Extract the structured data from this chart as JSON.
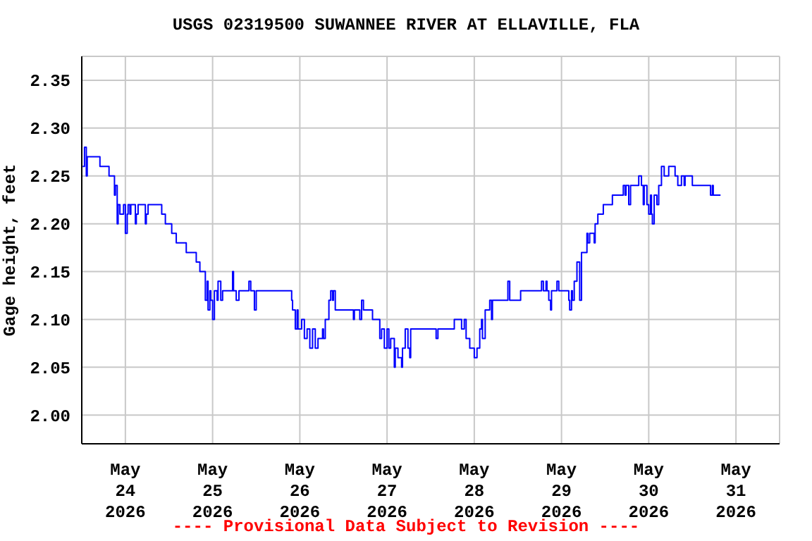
{
  "chart_data": {
    "type": "step",
    "title": "USGS 02319500 SUWANNEE RIVER AT ELLAVILLE, FLA",
    "ylabel": "Gage height, feet",
    "annotations": [
      "---- Provisional Data Subject to Revision ----"
    ],
    "x": [
      "2026-05-23T12:15",
      "2026-05-23T12:45",
      "2026-05-23T13:15",
      "2026-05-23T13:30",
      "2026-05-23T17:00",
      "2026-05-23T19:30",
      "2026-05-23T21:00",
      "2026-05-23T21:15",
      "2026-05-23T21:45",
      "2026-05-23T22:00",
      "2026-05-23T22:30",
      "2026-05-23T23:30",
      "2026-05-24T00:00",
      "2026-05-24T00:30",
      "2026-05-24T00:45",
      "2026-05-24T01:15",
      "2026-05-24T01:30",
      "2026-05-24T02:45",
      "2026-05-24T03:00",
      "2026-05-24T03:30",
      "2026-05-24T05:30",
      "2026-05-24T05:45",
      "2026-05-24T06:15",
      "2026-05-24T10:00",
      "2026-05-24T11:00",
      "2026-05-24T12:45",
      "2026-05-24T14:00",
      "2026-05-24T16:45",
      "2026-05-24T19:30",
      "2026-05-24T20:30",
      "2026-05-24T22:00",
      "2026-05-24T22:30",
      "2026-05-24T22:45",
      "2026-05-24T23:15",
      "2026-05-24T23:30",
      "2026-05-25T00:00",
      "2026-05-25T00:30",
      "2026-05-25T01:15",
      "2026-05-25T01:30",
      "2026-05-25T02:15",
      "2026-05-25T02:45",
      "2026-05-25T05:30",
      "2026-05-25T05:45",
      "2026-05-25T06:30",
      "2026-05-25T07:15",
      "2026-05-25T10:00",
      "2026-05-25T10:30",
      "2026-05-25T11:30",
      "2026-05-25T12:00",
      "2026-05-25T21:45",
      "2026-05-25T22:00",
      "2026-05-25T22:45",
      "2026-05-25T23:15",
      "2026-05-25T23:30",
      "2026-05-26T00:30",
      "2026-05-26T01:15",
      "2026-05-26T02:00",
      "2026-05-26T02:45",
      "2026-05-26T03:30",
      "2026-05-26T04:15",
      "2026-05-26T05:00",
      "2026-05-26T06:15",
      "2026-05-26T06:30",
      "2026-05-26T07:00",
      "2026-05-26T08:00",
      "2026-05-26T08:30",
      "2026-05-26T09:00",
      "2026-05-26T09:15",
      "2026-05-26T09:45",
      "2026-05-26T14:45",
      "2026-05-26T15:00",
      "2026-05-26T16:30",
      "2026-05-26T17:00",
      "2026-05-26T17:30",
      "2026-05-26T20:00",
      "2026-05-26T22:00",
      "2026-05-26T22:30",
      "2026-05-26T23:15",
      "2026-05-27T00:00",
      "2026-05-27T00:30",
      "2026-05-27T01:00",
      "2026-05-27T02:00",
      "2026-05-27T02:15",
      "2026-05-27T03:00",
      "2026-05-27T04:00",
      "2026-05-27T04:15",
      "2026-05-27T05:00",
      "2026-05-27T05:45",
      "2026-05-27T06:15",
      "2026-05-27T06:30",
      "2026-05-27T13:30",
      "2026-05-27T14:00",
      "2026-05-27T18:30",
      "2026-05-27T20:30",
      "2026-05-27T21:15",
      "2026-05-27T21:45",
      "2026-05-27T22:45",
      "2026-05-28T00:00",
      "2026-05-28T00:45",
      "2026-05-28T01:30",
      "2026-05-28T02:00",
      "2026-05-28T02:15",
      "2026-05-28T03:00",
      "2026-05-28T04:15",
      "2026-05-28T04:45",
      "2026-05-28T05:00",
      "2026-05-28T09:15",
      "2026-05-28T09:45",
      "2026-05-28T12:45",
      "2026-05-28T18:30",
      "2026-05-28T19:00",
      "2026-05-28T19:45",
      "2026-05-28T20:00",
      "2026-05-28T20:30",
      "2026-05-28T21:00",
      "2026-05-28T21:15",
      "2026-05-28T22:45",
      "2026-05-28T23:15",
      "2026-05-29T02:00",
      "2026-05-29T02:15",
      "2026-05-29T02:45",
      "2026-05-29T03:00",
      "2026-05-29T03:30",
      "2026-05-29T04:15",
      "2026-05-29T05:00",
      "2026-05-29T05:30",
      "2026-05-29T07:00",
      "2026-05-29T07:15",
      "2026-05-29T07:45",
      "2026-05-29T09:00",
      "2026-05-29T09:15",
      "2026-05-29T10:00",
      "2026-05-29T11:30",
      "2026-05-29T14:00",
      "2026-05-29T17:00",
      "2026-05-29T17:30",
      "2026-05-29T17:45",
      "2026-05-29T18:30",
      "2026-05-29T19:00",
      "2026-05-29T21:15",
      "2026-05-29T22:00",
      "2026-05-29T22:30",
      "2026-05-29T22:45",
      "2026-05-29T23:30",
      "2026-05-30T00:00",
      "2026-05-30T00:30",
      "2026-05-30T00:45",
      "2026-05-30T01:00",
      "2026-05-30T01:30",
      "2026-05-30T02:15",
      "2026-05-30T02:45",
      "2026-05-30T03:30",
      "2026-05-30T04:15",
      "2026-05-30T05:30",
      "2026-05-30T07:15",
      "2026-05-30T08:00",
      "2026-05-30T09:00",
      "2026-05-30T09:45",
      "2026-05-30T10:00",
      "2026-05-30T12:00",
      "2026-05-30T17:00",
      "2026-05-30T17:30",
      "2026-05-30T17:45",
      "2026-05-30T19:45"
    ],
    "series": [
      {
        "color": "#0000ff",
        "values": [
          2.26,
          2.28,
          2.25,
          2.27,
          2.26,
          2.25,
          2.23,
          2.24,
          2.2,
          2.22,
          2.21,
          2.22,
          2.19,
          2.21,
          2.22,
          2.21,
          2.22,
          2.2,
          2.21,
          2.22,
          2.2,
          2.21,
          2.22,
          2.21,
          2.2,
          2.19,
          2.18,
          2.17,
          2.16,
          2.15,
          2.12,
          2.14,
          2.11,
          2.13,
          2.12,
          2.1,
          2.13,
          2.12,
          2.14,
          2.12,
          2.13,
          2.15,
          2.13,
          2.12,
          2.13,
          2.14,
          2.13,
          2.11,
          2.13,
          2.12,
          2.11,
          2.09,
          2.11,
          2.09,
          2.1,
          2.08,
          2.09,
          2.07,
          2.09,
          2.07,
          2.08,
          2.09,
          2.08,
          2.1,
          2.12,
          2.13,
          2.12,
          2.13,
          2.11,
          2.1,
          2.11,
          2.1,
          2.12,
          2.11,
          2.1,
          2.08,
          2.09,
          2.07,
          2.09,
          2.07,
          2.08,
          2.05,
          2.07,
          2.06,
          2.05,
          2.07,
          2.09,
          2.07,
          2.06,
          2.09,
          2.08,
          2.09,
          2.1,
          2.09,
          2.1,
          2.08,
          2.07,
          2.06,
          2.07,
          2.09,
          2.1,
          2.08,
          2.11,
          2.12,
          2.1,
          2.12,
          2.14,
          2.12,
          2.13,
          2.14,
          2.13,
          2.14,
          2.13,
          2.12,
          2.11,
          2.13,
          2.14,
          2.13,
          2.12,
          2.11,
          2.13,
          2.12,
          2.14,
          2.16,
          2.12,
          2.17,
          2.19,
          2.18,
          2.19,
          2.18,
          2.2,
          2.21,
          2.22,
          2.23,
          2.24,
          2.23,
          2.24,
          2.22,
          2.24,
          2.25,
          2.24,
          2.22,
          2.24,
          2.22,
          2.21,
          2.23,
          2.21,
          2.2,
          2.23,
          2.22,
          2.24,
          2.26,
          2.25,
          2.26,
          2.25,
          2.24,
          2.25,
          2.24,
          2.25,
          2.24,
          2.23,
          2.24,
          2.23,
          2.23
        ]
      }
    ],
    "xlim": [
      "2026-05-23T12:00",
      "2026-05-31T12:00"
    ],
    "xticks": [
      {
        "value": "2026-05-24",
        "label": "May\n24\n2026"
      },
      {
        "value": "2026-05-25",
        "label": "May\n25\n2026"
      },
      {
        "value": "2026-05-26",
        "label": "May\n26\n2026"
      },
      {
        "value": "2026-05-27",
        "label": "May\n27\n2026"
      },
      {
        "value": "2026-05-28",
        "label": "May\n28\n2026"
      },
      {
        "value": "2026-05-29",
        "label": "May\n29\n2026"
      },
      {
        "value": "2026-05-30",
        "label": "May\n30\n2026"
      },
      {
        "value": "2026-05-31",
        "label": "May\n31\n2026"
      }
    ],
    "ylim": [
      1.97,
      2.375
    ],
    "yticks": [
      {
        "value": 2,
        "label": "2.00"
      },
      2.05,
      {
        "value": 2.1,
        "label": "2.10"
      },
      2.15,
      {
        "value": 2.2,
        "label": "2.20"
      },
      2.25,
      {
        "value": 2.3,
        "label": "2.30"
      },
      2.35
    ],
    "grid": true,
    "legend": false,
    "marker": "none",
    "line_style": "solid"
  }
}
